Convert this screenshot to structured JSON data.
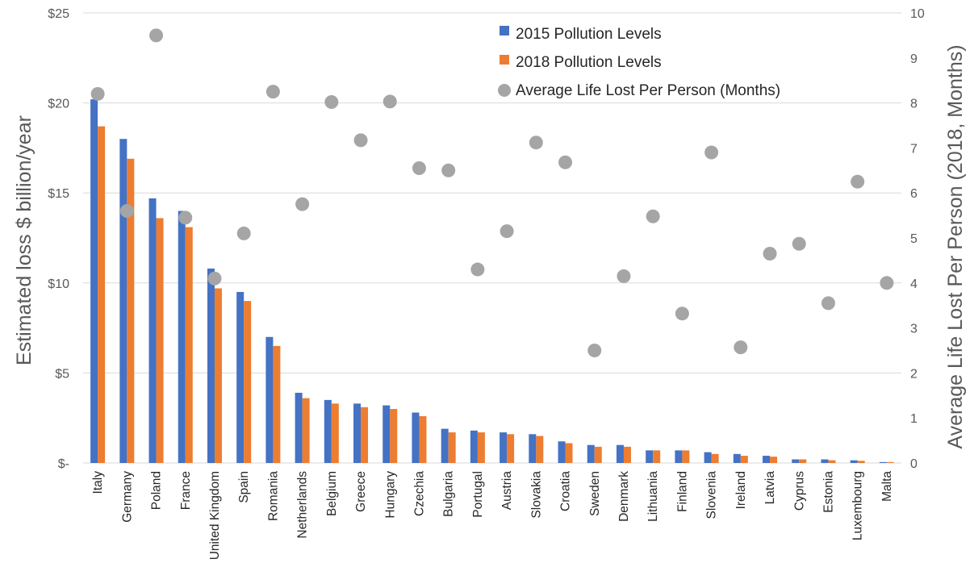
{
  "chart_data": {
    "type": "bar",
    "categories": [
      "Italy",
      "Germany",
      "Poland",
      "France",
      "United Kingdom",
      "Spain",
      "Romania",
      "Netherlands",
      "Belgium",
      "Greece",
      "Hungary",
      "Czechia",
      "Bulgaria",
      "Portugal",
      "Austria",
      "Slovakia",
      "Croatia",
      "Sweden",
      "Denmark",
      "Lithuania",
      "Finland",
      "Slovenia",
      "Ireland",
      "Latvia",
      "Cyprus",
      "Estonia",
      "Luxembourg",
      "Malta"
    ],
    "series": [
      {
        "name": "2015 Pollution Levels",
        "kind": "bar",
        "axis": "left",
        "color": "#4472C4",
        "values": [
          20.2,
          18.0,
          14.7,
          14.0,
          10.8,
          9.5,
          7.0,
          3.9,
          3.5,
          3.3,
          3.2,
          2.8,
          1.9,
          1.8,
          1.7,
          1.6,
          1.2,
          1.0,
          1.0,
          0.7,
          0.7,
          0.6,
          0.5,
          0.4,
          0.2,
          0.2,
          0.15,
          0.05
        ]
      },
      {
        "name": "2018 Pollution Levels",
        "kind": "bar",
        "axis": "left",
        "color": "#ED7D31",
        "values": [
          18.7,
          16.9,
          13.6,
          13.1,
          9.7,
          9.0,
          6.5,
          3.6,
          3.3,
          3.1,
          3.0,
          2.6,
          1.7,
          1.7,
          1.6,
          1.5,
          1.1,
          0.9,
          0.9,
          0.7,
          0.7,
          0.5,
          0.4,
          0.35,
          0.2,
          0.15,
          0.12,
          0.05
        ]
      },
      {
        "name": "Average Life Lost Per Person (Months)",
        "kind": "scatter",
        "axis": "right",
        "color": "#A5A5A5",
        "values": [
          8.2,
          5.6,
          9.5,
          5.45,
          4.1,
          5.1,
          8.25,
          5.75,
          8.02,
          7.17,
          8.03,
          6.55,
          6.5,
          4.3,
          5.15,
          7.12,
          6.68,
          2.5,
          4.15,
          5.48,
          3.32,
          6.9,
          2.57,
          4.65,
          4.87,
          3.55,
          6.25,
          4.0
        ]
      }
    ],
    "y_left": {
      "label": "Estimated loss $ billion/year",
      "range": [
        0,
        25
      ],
      "ticks": [
        0,
        5,
        10,
        15,
        20,
        25
      ],
      "tick_labels": [
        "$-",
        "$5",
        "$10",
        "$15",
        "$20",
        "$25"
      ]
    },
    "y_right": {
      "label": "Average Life Lost Per Person (2018, Months)",
      "range": [
        0,
        10
      ],
      "ticks": [
        0,
        1,
        2,
        3,
        4,
        5,
        6,
        7,
        8,
        9,
        10
      ]
    },
    "grid": true,
    "legend": "top-right"
  }
}
